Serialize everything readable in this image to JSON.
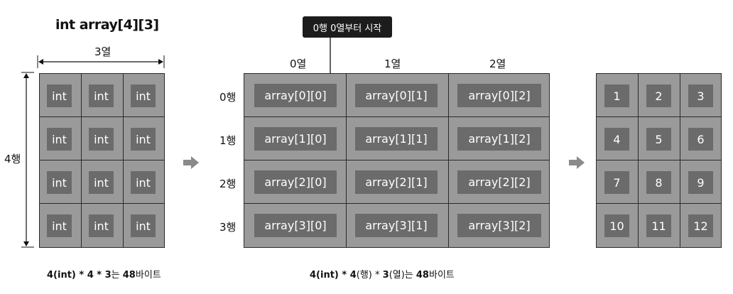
{
  "title": "int array[4][3]",
  "left_grid": {
    "width_label": "3열",
    "height_label": "4행",
    "cells": [
      [
        "int",
        "int",
        "int"
      ],
      [
        "int",
        "int",
        "int"
      ],
      [
        "int",
        "int",
        "int"
      ],
      [
        "int",
        "int",
        "int"
      ]
    ],
    "caption": {
      "a": "4(int)",
      "b": " * ",
      "c": "4",
      "d": " * ",
      "e": "3",
      "f": "는 ",
      "g": "48",
      "h": "바이트"
    }
  },
  "callout": "0행 0열부터 시작",
  "middle_grid": {
    "col_labels": [
      "0열",
      "1열",
      "2열"
    ],
    "row_labels": [
      "0행",
      "1행",
      "2행",
      "3행"
    ],
    "cells": [
      [
        "array[0][0]",
        "array[0][1]",
        "array[0][2]"
      ],
      [
        "array[1][0]",
        "array[1][1]",
        "array[1][2]"
      ],
      [
        "array[2][0]",
        "array[2][1]",
        "array[2][2]"
      ],
      [
        "array[3][0]",
        "array[3][1]",
        "array[3][2]"
      ]
    ],
    "caption": {
      "a": "4(int)",
      "b": " * ",
      "c": "4",
      "d": "(행) * ",
      "e": "3",
      "f": "(열)는 ",
      "g": "48",
      "h": "바이트"
    }
  },
  "right_grid": {
    "cells": [
      [
        "1",
        "2",
        "3"
      ],
      [
        "4",
        "5",
        "6"
      ],
      [
        "7",
        "8",
        "9"
      ],
      [
        "10",
        "11",
        "12"
      ]
    ]
  },
  "colors": {
    "grid_bg": "#9a9a9a",
    "cell_bg": "#6b6b6b",
    "arrow": "#8a8a8a",
    "callout_bg": "#1c1c1c"
  }
}
